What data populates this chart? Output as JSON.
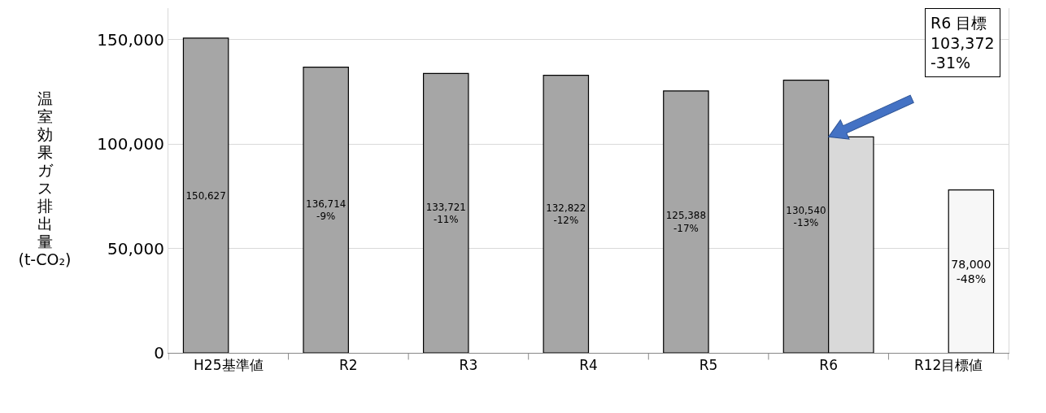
{
  "chart_data": {
    "type": "bar",
    "categories": [
      "H25基準値",
      "R2",
      "R3",
      "R4",
      "R5",
      "R6",
      "R12目標値"
    ],
    "ylabel": "温室効果ガス排出量\n(t-CO₂)",
    "series": [
      {
        "color": "#a6a6a6",
        "values": [
          150627,
          136714,
          133721,
          132822,
          125388,
          130540,
          null
        ],
        "value_labels": [
          "150,627",
          "136,714\n-9%",
          "133,721\n-11%",
          "132,822\n-12%",
          "125,388\n-17%",
          "130,540\n-13%",
          null
        ]
      },
      {
        "colors": [
          "#ffffff",
          "#ffffff",
          "#ffffff",
          "#ffffff",
          "#ffffff",
          "#d9d9d9",
          "#f7f7f7"
        ],
        "values": [
          null,
          null,
          null,
          null,
          null,
          103372,
          78000
        ],
        "value_labels": [
          null,
          null,
          null,
          null,
          null,
          null,
          "78,000\n-48%"
        ]
      }
    ],
    "annotations": [
      "R6 目標\n103,372\n-31%"
    ],
    "ylim": [
      0,
      165000
    ],
    "yticks": [
      0,
      {
        "value": 50000,
        "label": "50,000"
      },
      {
        "value": 100000,
        "label": "100,000"
      },
      {
        "value": 150000,
        "label": "150,000"
      }
    ],
    "grid": "y"
  }
}
